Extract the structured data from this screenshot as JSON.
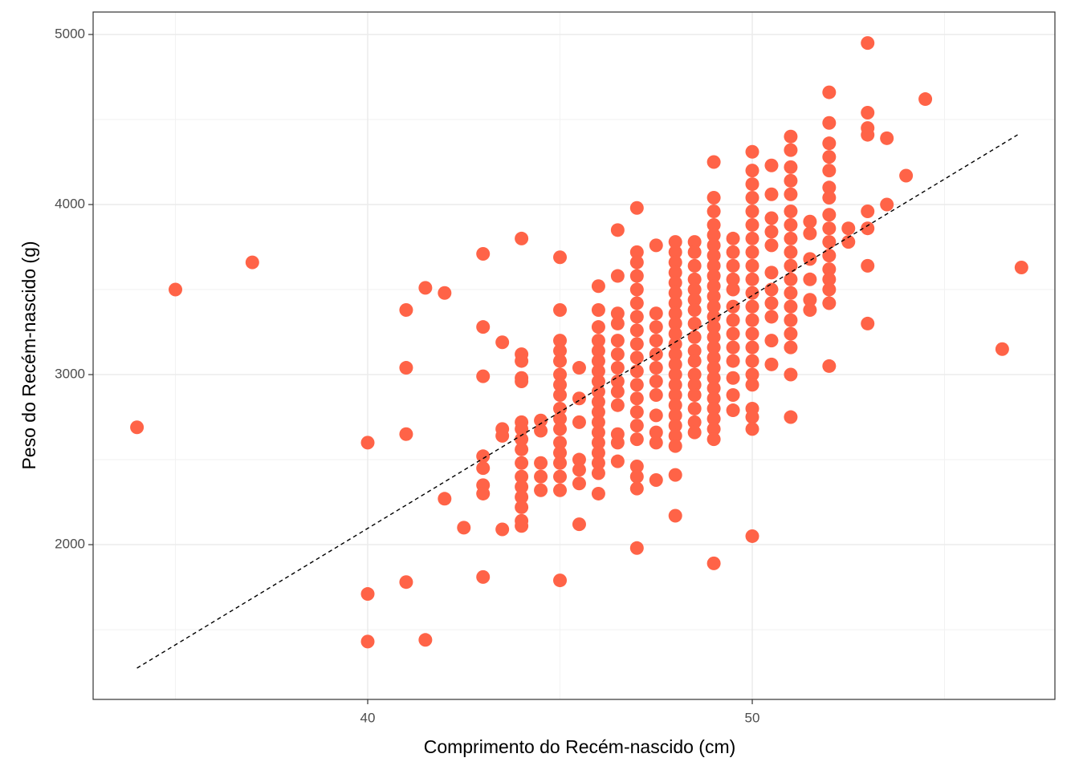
{
  "chart_data": {
    "type": "scatter",
    "x_label": "Comprimento do Recém-nascido (cm)",
    "y_label": "Peso do Recém-nascido (g)",
    "xlim": [
      32.86,
      57.87
    ],
    "ylim": [
      1090,
      5132
    ],
    "xticks": [
      40,
      50
    ],
    "yticks": [
      2000,
      3000,
      4000,
      5000
    ],
    "xminor": [
      35,
      45,
      55
    ],
    "yminor": [
      1500,
      2500,
      3500,
      4500
    ],
    "grid": true,
    "x": [
      34,
      35,
      37,
      40,
      40,
      40,
      41,
      41,
      41,
      41,
      41.5,
      41.5,
      42,
      42,
      42.5,
      43,
      43,
      43,
      43,
      43,
      43,
      43,
      43,
      43.5,
      43.5,
      43.5,
      43.5,
      44,
      44,
      44,
      44,
      44,
      44,
      44,
      44,
      44,
      44,
      44,
      44,
      44,
      44,
      44,
      44,
      44.5,
      44.5,
      44.5,
      44.5,
      44.5,
      45,
      45,
      45,
      45,
      45,
      45,
      45,
      45,
      45,
      45,
      45,
      45,
      45,
      45,
      45,
      45,
      45,
      45.5,
      45.5,
      45.5,
      45.5,
      45.5,
      45.5,
      45.5,
      46,
      46,
      46,
      46,
      46,
      46,
      46,
      46,
      46,
      46,
      46,
      46,
      46,
      46,
      46,
      46,
      46,
      46,
      46.5,
      46.5,
      46.5,
      46.5,
      46.5,
      46.5,
      46.5,
      46.5,
      46.5,
      46.5,
      46.5,
      46.5,
      46.5,
      47,
      47,
      47,
      47,
      47,
      47,
      47,
      47,
      47,
      47,
      47,
      47,
      47,
      47,
      47,
      47,
      47,
      47,
      47,
      47,
      47.5,
      47.5,
      47.5,
      47.5,
      47.5,
      47.5,
      47.5,
      47.5,
      47.5,
      47.5,
      47.5,
      47.5,
      48,
      48,
      48,
      48,
      48,
      48,
      48,
      48,
      48,
      48,
      48,
      48,
      48,
      48,
      48,
      48,
      48,
      48,
      48,
      48,
      48,
      48,
      48,
      48.5,
      48.5,
      48.5,
      48.5,
      48.5,
      48.5,
      48.5,
      48.5,
      48.5,
      48.5,
      48.5,
      48.5,
      48.5,
      48.5,
      48.5,
      48.5,
      48.5,
      49,
      49,
      49,
      49,
      49,
      49,
      49,
      49,
      49,
      49,
      49,
      49,
      49,
      49,
      49,
      49,
      49,
      49,
      49,
      49,
      49,
      49,
      49,
      49,
      49,
      49,
      49.5,
      49.5,
      49.5,
      49.5,
      49.5,
      49.5,
      49.5,
      49.5,
      49.5,
      49.5,
      49.5,
      49.5,
      49.5,
      50,
      50,
      50,
      50,
      50,
      50,
      50,
      50,
      50,
      50,
      50,
      50,
      50,
      50,
      50,
      50,
      50,
      50,
      50,
      50,
      50,
      50,
      50.5,
      50.5,
      50.5,
      50.5,
      50.5,
      50.5,
      50.5,
      50.5,
      50.5,
      50.5,
      50.5,
      51,
      51,
      51,
      51,
      51,
      51,
      51,
      51,
      51,
      51,
      51,
      51,
      51,
      51,
      51,
      51,
      51,
      51,
      51.5,
      51.5,
      51.5,
      51.5,
      51.5,
      51.5,
      52,
      52,
      52,
      52,
      52,
      52,
      52,
      52,
      52,
      52,
      52,
      52,
      52,
      52,
      52,
      52,
      52.5,
      52.5,
      53,
      53,
      53,
      53,
      53,
      53,
      53,
      53,
      53.5,
      53.5,
      54,
      54.5,
      56.5,
      57
    ],
    "series": [
      {
        "color": "#FF6347",
        "values": [
          2690,
          3500,
          3660,
          2600,
          1710,
          1430,
          3380,
          3040,
          2650,
          1780,
          3510,
          1440,
          3480,
          2270,
          2100,
          3710,
          3280,
          2990,
          2520,
          2450,
          2350,
          2300,
          1810,
          3190,
          2680,
          2640,
          2090,
          3800,
          3120,
          3080,
          2980,
          2960,
          2720,
          2680,
          2620,
          2560,
          2480,
          2400,
          2340,
          2280,
          2220,
          2140,
          2110,
          2730,
          2670,
          2480,
          2400,
          2320,
          3690,
          3380,
          3200,
          3140,
          3080,
          3000,
          2940,
          2880,
          2800,
          2740,
          2680,
          2600,
          2540,
          2480,
          2400,
          2320,
          1790,
          3040,
          2860,
          2720,
          2500,
          2440,
          2360,
          2120,
          3520,
          3380,
          3280,
          3200,
          3140,
          3080,
          3020,
          2960,
          2900,
          2840,
          2780,
          2720,
          2660,
          2600,
          2540,
          2480,
          2420,
          2300,
          3850,
          3580,
          3360,
          3300,
          3200,
          3120,
          3040,
          2960,
          2900,
          2820,
          2650,
          2600,
          2490,
          3980,
          3720,
          3660,
          3580,
          3500,
          3420,
          3340,
          3260,
          3180,
          3100,
          3020,
          2940,
          2860,
          2780,
          2700,
          2620,
          2460,
          2400,
          2330,
          1980,
          3760,
          3360,
          3280,
          3200,
          3120,
          3040,
          2960,
          2880,
          2760,
          2660,
          2600,
          2380,
          3780,
          3720,
          3660,
          3600,
          3540,
          3480,
          3420,
          3360,
          3300,
          3240,
          3180,
          3120,
          3060,
          3000,
          2940,
          2880,
          2820,
          2760,
          2700,
          2640,
          2580,
          2410,
          2170,
          3780,
          3720,
          3640,
          3560,
          3500,
          3440,
          3380,
          3300,
          3220,
          3140,
          3080,
          3000,
          2940,
          2880,
          2800,
          2720,
          2660,
          4250,
          4040,
          3960,
          3880,
          3820,
          3760,
          3700,
          3640,
          3580,
          3520,
          3460,
          3400,
          3340,
          3280,
          3220,
          3160,
          3100,
          3040,
          2980,
          2920,
          2860,
          2800,
          2740,
          2680,
          2620,
          1890,
          3800,
          3720,
          3640,
          3560,
          3500,
          3400,
          3320,
          3240,
          3160,
          3080,
          2980,
          2880,
          2790,
          4310,
          4200,
          4120,
          4040,
          3960,
          3880,
          3800,
          3720,
          3640,
          3560,
          3480,
          3400,
          3320,
          3240,
          3160,
          3080,
          3000,
          2940,
          2800,
          2750,
          2680,
          2050,
          4230,
          4060,
          3920,
          3840,
          3760,
          3600,
          3500,
          3420,
          3340,
          3200,
          3060,
          4400,
          4320,
          4220,
          4140,
          4060,
          3960,
          3880,
          3800,
          3720,
          3640,
          3560,
          3480,
          3400,
          3320,
          3240,
          3160,
          3000,
          2750,
          3900,
          3830,
          3680,
          3560,
          3440,
          3380,
          4660,
          4480,
          4360,
          4280,
          4200,
          4100,
          4040,
          3940,
          3860,
          3780,
          3700,
          3620,
          3560,
          3500,
          3420,
          3050,
          3860,
          3780,
          4950,
          4540,
          4450,
          4410,
          3960,
          3860,
          3640,
          3300,
          4390,
          4000,
          4170,
          4620,
          3150,
          3630
        ]
      }
    ],
    "trend_line": {
      "x": [
        34,
        56.9
      ],
      "y": [
        1274,
        4410
      ],
      "color": "#000000"
    }
  }
}
